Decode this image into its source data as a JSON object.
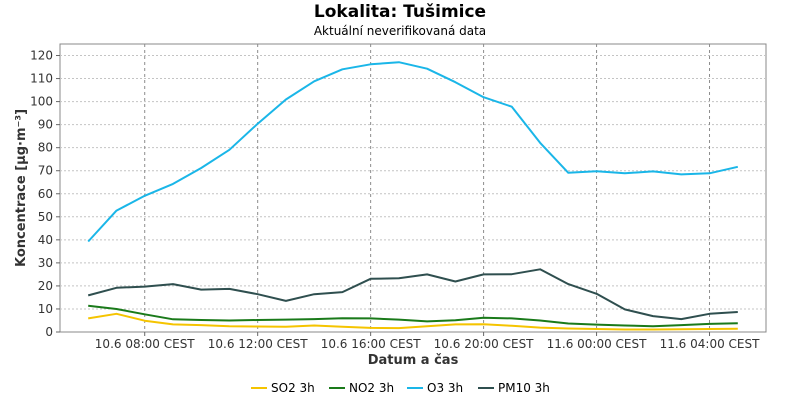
{
  "chart_data": {
    "type": "line",
    "title": "Lokalita: Tušimice",
    "subtitle": "Aktuální neverifikovaná data",
    "xlabel": "Datum a čas",
    "ylabel": "Koncentrace [µg·m⁻³]",
    "ylim": [
      0,
      125
    ],
    "yticks": [
      0,
      10,
      20,
      30,
      40,
      50,
      60,
      70,
      80,
      90,
      100,
      110,
      120
    ],
    "xlim": [
      "10.6 05:00",
      "11.6 06:00"
    ],
    "xticks": [
      {
        "t": "10.6 08:00",
        "label": "10.6 08:00 CEST"
      },
      {
        "t": "10.6 12:00",
        "label": "10.6 12:00 CEST"
      },
      {
        "t": "10.6 16:00",
        "label": "10.6 16:00 CEST"
      },
      {
        "t": "10.6 20:00",
        "label": "10.6 20:00 CEST"
      },
      {
        "t": "11.6 00:00",
        "label": "11.6 00:00 CEST"
      },
      {
        "t": "11.6 04:00",
        "label": "11.6 04:00 CEST"
      }
    ],
    "x": [
      "10.6 06:00",
      "10.6 07:00",
      "10.6 08:00",
      "10.6 09:00",
      "10.6 10:00",
      "10.6 11:00",
      "10.6 12:00",
      "10.6 13:00",
      "10.6 14:00",
      "10.6 15:00",
      "10.6 16:00",
      "10.6 17:00",
      "10.6 18:00",
      "10.6 19:00",
      "10.6 20:00",
      "10.6 21:00",
      "10.6 22:00",
      "10.6 23:00",
      "11.6 00:00",
      "11.6 01:00",
      "11.6 02:00",
      "11.6 03:00",
      "11.6 04:00",
      "11.6 05:00"
    ],
    "series": [
      {
        "name": "SO2 3h",
        "color": "#f5c400",
        "values": [
          5.9,
          7.9,
          4.9,
          3.3,
          3.0,
          2.5,
          2.4,
          2.3,
          2.8,
          2.3,
          1.8,
          1.7,
          2.5,
          3.3,
          3.4,
          2.7,
          1.9,
          1.5,
          1.3,
          1.1,
          1.1,
          1.2,
          1.3,
          1.4
        ]
      },
      {
        "name": "NO2 3h",
        "color": "#1a7a1a",
        "values": [
          11.4,
          10.0,
          7.7,
          5.5,
          5.2,
          5.0,
          5.2,
          5.4,
          5.6,
          6.0,
          5.9,
          5.4,
          4.6,
          5.1,
          6.2,
          5.9,
          5.0,
          3.7,
          3.2,
          2.8,
          2.5,
          3.0,
          3.5,
          3.8
        ]
      },
      {
        "name": "O3 3h",
        "color": "#1ab6e8",
        "values": [
          39.3,
          52.7,
          59.1,
          64.3,
          71.2,
          79.1,
          90.4,
          100.9,
          108.8,
          114.0,
          116.2,
          117.1,
          114.3,
          108.4,
          101.9,
          97.8,
          82.1,
          69.1,
          69.8,
          68.9,
          69.7,
          68.4,
          68.9,
          71.7
        ]
      },
      {
        "name": "PM10 3h",
        "color": "#2f4f4f",
        "values": [
          15.9,
          19.2,
          19.7,
          20.8,
          18.4,
          18.7,
          16.4,
          13.5,
          16.4,
          17.3,
          23.1,
          23.3,
          25.0,
          21.9,
          25.0,
          25.1,
          27.2,
          20.8,
          16.6,
          9.8,
          6.9,
          5.6,
          7.9,
          8.7
        ]
      }
    ],
    "grid": true,
    "legend": "bottom"
  }
}
